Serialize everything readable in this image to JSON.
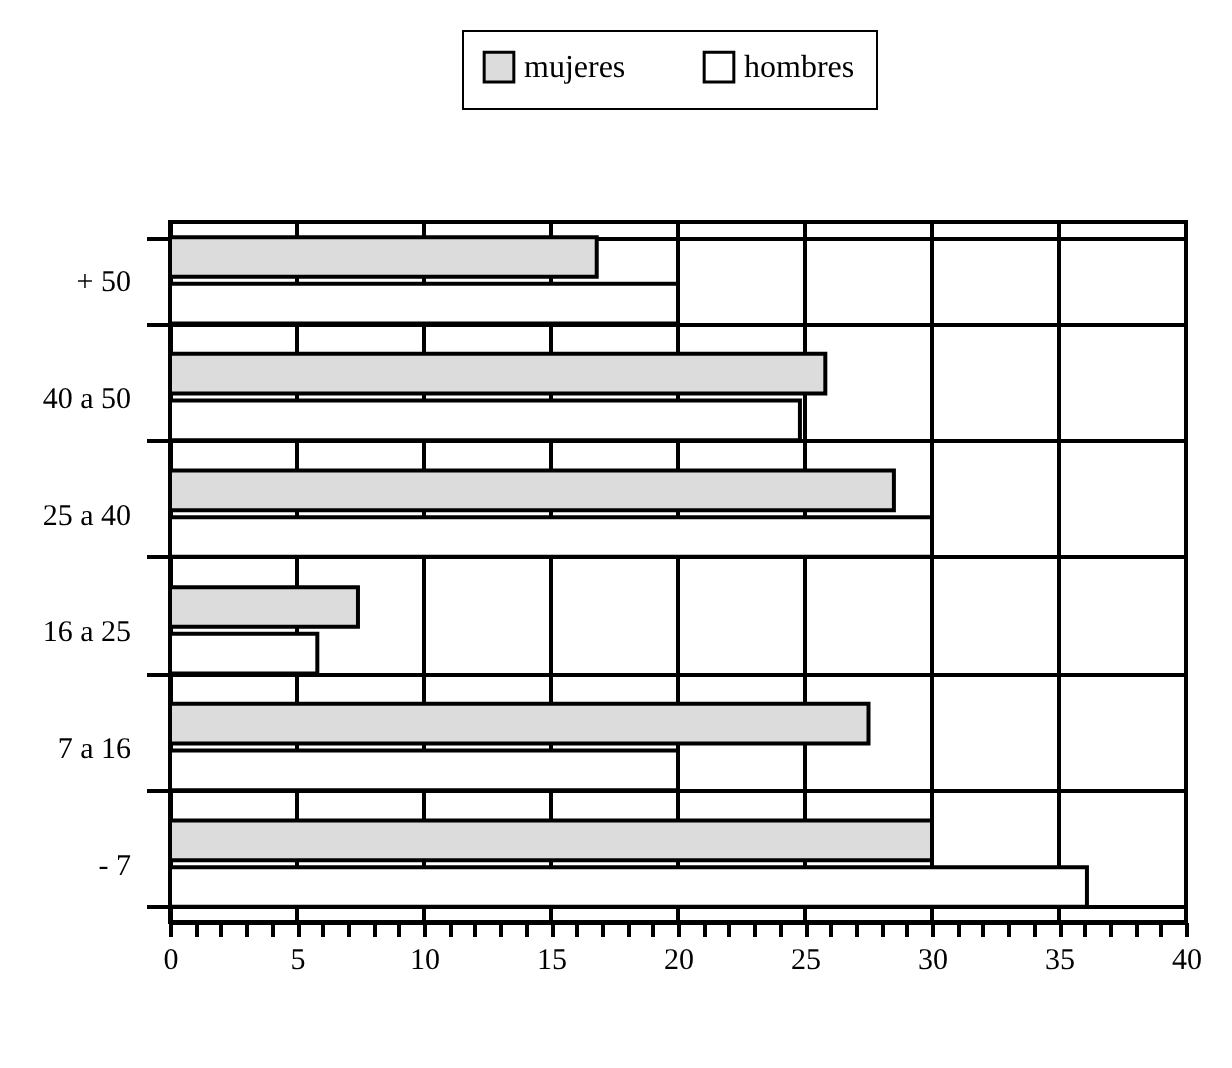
{
  "chart_data": {
    "type": "bar",
    "orientation": "horizontal",
    "categories": [
      "+ 50",
      "40 a 50",
      "25 a 40",
      "16 a 25",
      "7 a 16",
      "- 7"
    ],
    "series": [
      {
        "name": "mujeres",
        "color": "#dcdcdc",
        "values": [
          16.8,
          25.8,
          28.5,
          7.4,
          27.5,
          30
        ]
      },
      {
        "name": "hombres",
        "color": "#ffffff",
        "values": [
          20,
          24.8,
          30,
          5.8,
          20,
          36.1
        ]
      }
    ],
    "xlim": [
      0,
      40
    ],
    "xticks": [
      0,
      {
        "value": 1,
        "label": null
      },
      {
        "value": 2,
        "label": null
      },
      {
        "value": 3,
        "label": null
      },
      {
        "value": 4,
        "label": null
      },
      5,
      {
        "value": 6,
        "label": null
      },
      {
        "value": 7,
        "label": null
      },
      {
        "value": 8,
        "label": null
      },
      {
        "value": 9,
        "label": null
      },
      10,
      {
        "value": 11,
        "label": null
      },
      {
        "value": 12,
        "label": null
      },
      {
        "value": 13,
        "label": null
      },
      {
        "value": 14,
        "label": null
      },
      15,
      {
        "value": 16,
        "label": null
      },
      {
        "value": 17,
        "label": null
      },
      {
        "value": 18,
        "label": null
      },
      {
        "value": 19,
        "label": null
      },
      20,
      {
        "value": 21,
        "label": null
      },
      {
        "value": 22,
        "label": null
      },
      {
        "value": 23,
        "label": null
      },
      {
        "value": 24,
        "label": null
      },
      25,
      {
        "value": 26,
        "label": null
      },
      {
        "value": 27,
        "label": null
      },
      {
        "value": 28,
        "label": null
      },
      {
        "value": 29,
        "label": null
      },
      30,
      {
        "value": 31,
        "label": null
      },
      {
        "value": 32,
        "label": null
      },
      {
        "value": 33,
        "label": null
      },
      {
        "value": 34,
        "label": null
      },
      35,
      {
        "value": 36,
        "label": null
      },
      {
        "value": 37,
        "label": null
      },
      {
        "value": 38,
        "label": null
      },
      {
        "value": 39,
        "label": null
      },
      40
    ],
    "grid": true,
    "legend": "top"
  }
}
